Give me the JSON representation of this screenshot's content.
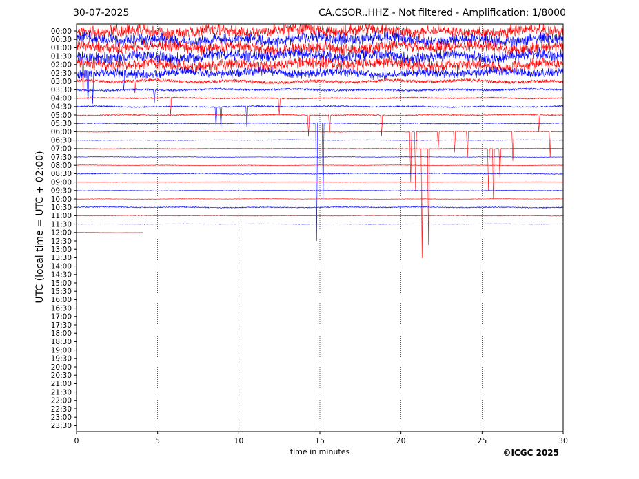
{
  "header": {
    "date": "30-07-2025",
    "title": "CA.CSOR..HHZ - Not filtered - Amplification: 1/8000"
  },
  "footer": {
    "copyright": "©ICGC 2025"
  },
  "colors": {
    "trace_a": "#0000ff",
    "trace_b": "#ff0000",
    "axis": "#000000"
  },
  "chart_data": {
    "type": "line",
    "title": "CA.CSOR..HHZ - Not filtered - Amplification: 1/8000",
    "xlabel": "time in minutes",
    "ylabel": "UTC (local time = UTC + 02:00)",
    "xlim": [
      0,
      30
    ],
    "x_ticks": [
      0,
      5,
      10,
      15,
      20,
      25,
      30
    ],
    "x_grid": "dotted vertical lines at each x tick",
    "y_ticks": [
      "00:00",
      "00:30",
      "01:00",
      "01:30",
      "02:00",
      "02:30",
      "03:00",
      "03:30",
      "04:00",
      "04:30",
      "05:00",
      "05:30",
      "06:00",
      "06:30",
      "07:00",
      "07:30",
      "08:00",
      "08:30",
      "09:00",
      "09:30",
      "10:00",
      "10:30",
      "11:00",
      "11:30",
      "12:00",
      "12:30",
      "13:00",
      "13:30",
      "14:00",
      "14:30",
      "15:00",
      "15:30",
      "16:00",
      "16:30",
      "17:00",
      "17:30",
      "18:00",
      "18:30",
      "19:00",
      "19:30",
      "20:00",
      "20:30",
      "21:00",
      "21:30",
      "22:00",
      "22:30",
      "23:00",
      "23:30"
    ],
    "y_direction": "top-to-bottom",
    "recorded_rows": 25,
    "last_row_end_minute": 4.1,
    "row_activity": [
      4,
      4,
      4,
      4,
      4,
      3,
      2,
      1.2,
      0.8,
      0.8,
      0.6,
      0.5,
      0.4,
      0.4,
      0.35,
      0.3,
      0.35,
      0.5,
      0.3,
      0.3,
      0.3,
      0.6,
      0.4,
      0.3,
      0.2
    ],
    "series": [
      {
        "name": "",
        "color": "#0000ff",
        "rows": [
          1,
          3,
          5,
          7,
          9,
          11,
          13,
          15,
          17,
          19,
          21,
          23
        ]
      },
      {
        "name": "",
        "color": "#ff0000",
        "rows": [
          0,
          2,
          4,
          6,
          8,
          10,
          12,
          14,
          16,
          18,
          20,
          22,
          24
        ]
      }
    ],
    "spikes": [
      {
        "row": 4,
        "x": 0.4,
        "depth": 3.5
      },
      {
        "row": 5,
        "x": 0.7,
        "depth": 4
      },
      {
        "row": 5,
        "x": 1.0,
        "depth": 3.2
      },
      {
        "row": 5,
        "x": 2.9,
        "depth": 2
      },
      {
        "row": 6,
        "x": 3.6,
        "depth": 1.5
      },
      {
        "row": 7,
        "x": 4.8,
        "depth": 1.5
      },
      {
        "row": 8,
        "x": 5.8,
        "depth": 2
      },
      {
        "row": 9,
        "x": 8.6,
        "depth": 2.5
      },
      {
        "row": 9,
        "x": 8.9,
        "depth": 2.5
      },
      {
        "row": 9,
        "x": 10.5,
        "depth": 2.5
      },
      {
        "row": 8,
        "x": 12.5,
        "depth": 2
      },
      {
        "row": 10,
        "x": 14.3,
        "depth": 2.5
      },
      {
        "row": 11,
        "x": 14.8,
        "depth": 14
      },
      {
        "row": 11,
        "x": 15.2,
        "depth": 9
      },
      {
        "row": 10,
        "x": 15.6,
        "depth": 2
      },
      {
        "row": 10,
        "x": 18.8,
        "depth": 2.5
      },
      {
        "row": 12,
        "x": 20.6,
        "depth": 6
      },
      {
        "row": 12,
        "x": 20.9,
        "depth": 7
      },
      {
        "row": 14,
        "x": 21.3,
        "depth": 13
      },
      {
        "row": 14,
        "x": 21.7,
        "depth": 11.5
      },
      {
        "row": 12,
        "x": 22.3,
        "depth": 2
      },
      {
        "row": 12,
        "x": 23.3,
        "depth": 2.5
      },
      {
        "row": 12,
        "x": 24.1,
        "depth": 3
      },
      {
        "row": 14,
        "x": 25.4,
        "depth": 5
      },
      {
        "row": 14,
        "x": 25.7,
        "depth": 6
      },
      {
        "row": 14,
        "x": 26.1,
        "depth": 3.5
      },
      {
        "row": 12,
        "x": 26.9,
        "depth": 3.5
      },
      {
        "row": 10,
        "x": 28.5,
        "depth": 2
      },
      {
        "row": 12,
        "x": 29.2,
        "depth": 3
      }
    ]
  }
}
